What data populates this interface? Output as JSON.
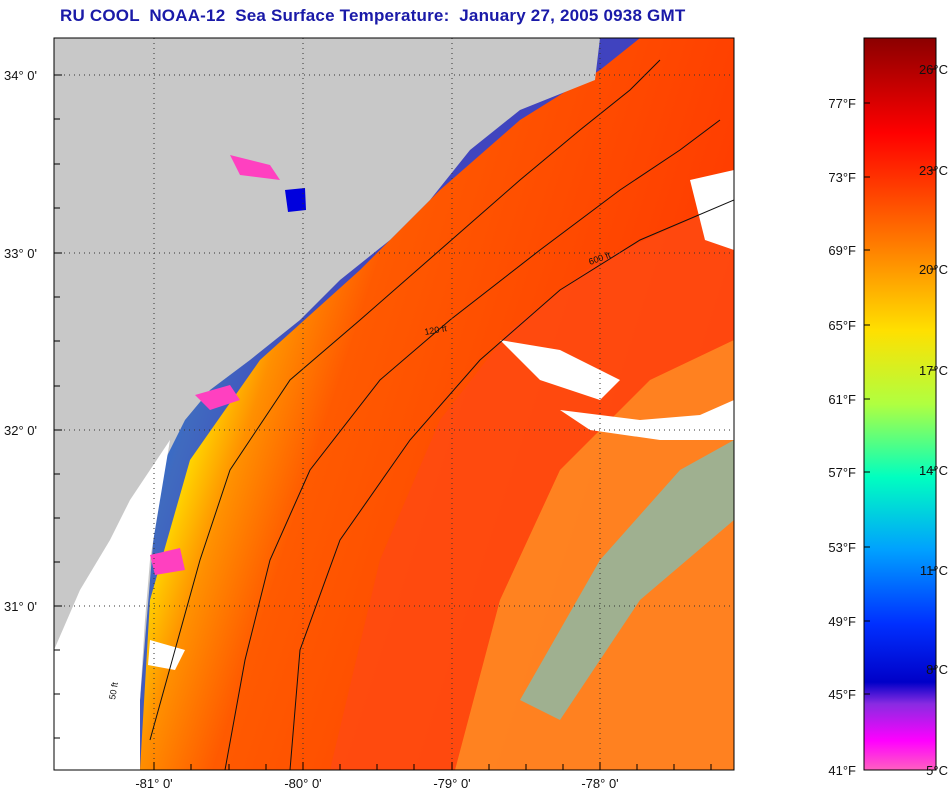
{
  "title": "RU COOL  NOAA-12  Sea Surface Temperature:  January 27, 2005 0938 GMT",
  "map": {
    "lat_labels": [
      "34° 0'",
      "33° 0'",
      "32° 0'",
      "31° 0'"
    ],
    "lon_labels": [
      "-81° 0'",
      "-80° 0'",
      "-79° 0'",
      "-78° 0'"
    ],
    "grid": "dotted",
    "contour_labels": [
      "50 ft",
      "120 ft",
      "600 ft"
    ]
  },
  "colorbar": {
    "fahrenheit_labels": [
      "77°F",
      "73°F",
      "69°F",
      "65°F",
      "61°F",
      "57°F",
      "53°F",
      "49°F",
      "45°F",
      "41°F"
    ],
    "celsius_labels": [
      "26°C",
      "23°C",
      "20°C",
      "17°C",
      "14°C",
      "11°C",
      "8°C",
      "5°C"
    ],
    "colors": [
      "#8b0000",
      "#ff0000",
      "#ff7a00",
      "#ffe000",
      "#b0ff40",
      "#00ffc0",
      "#00a0ff",
      "#0030ff",
      "#0000c8",
      "#8a2be2",
      "#ff00ff",
      "#ff60c0"
    ]
  },
  "colors": {
    "land": "#c8c8c8",
    "title": "#1a1aa8",
    "no_data": "#ffffff"
  }
}
